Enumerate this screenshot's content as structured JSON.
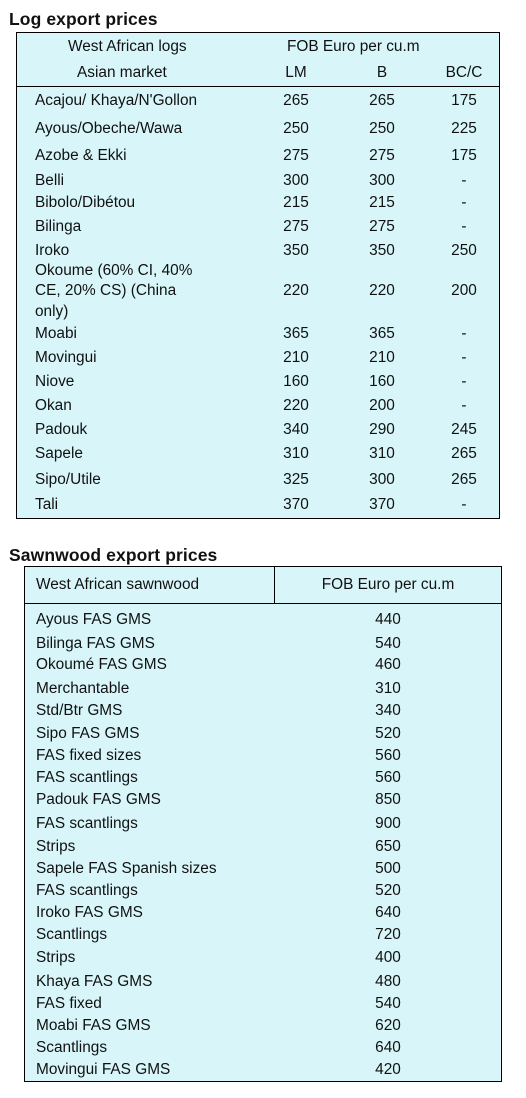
{
  "log_export": {
    "title": "Log export prices",
    "header": {
      "col1_line1": "West African logs",
      "col1_line2": "Asian market",
      "price_group": "FOB Euro per cu.m",
      "col_lm": "LM",
      "col_b": "B",
      "col_bc": "BC/C"
    },
    "rows": [
      {
        "species": "Acajou/ Khaya/N'Gollon",
        "lm": "265",
        "b": "265",
        "bc": "175"
      },
      {
        "species": "Ayous/Obeche/Wawa",
        "lm": "250",
        "b": "250",
        "bc": "225"
      },
      {
        "species": "Azobe & Ekki",
        "lm": "275",
        "b": "275",
        "bc": "175"
      },
      {
        "species": "Belli",
        "lm": "300",
        "b": "300",
        "bc": "-"
      },
      {
        "species": "Bibolo/Dibétou",
        "lm": "215",
        "b": "215",
        "bc": "-"
      },
      {
        "species": "Bilinga",
        "lm": "275",
        "b": "275",
        "bc": "-"
      },
      {
        "species": "Iroko",
        "lm": "350",
        "b": "350",
        "bc": "250"
      },
      {
        "species": "Okoume (60% CI, 40% CE, 20% CS) (China only)",
        "species_lines": [
          "Okoume (60% CI, 40%",
          "CE, 20% CS) (China",
          "only)"
        ],
        "lm": "220",
        "b": "220",
        "bc": "200"
      },
      {
        "species": "Moabi",
        "lm": "365",
        "b": "365",
        "bc": "-"
      },
      {
        "species": "Movingui",
        "lm": "210",
        "b": "210",
        "bc": "-"
      },
      {
        "species": "Niove",
        "lm": "160",
        "b": "160",
        "bc": "-"
      },
      {
        "species": "Okan",
        "lm": "220",
        "b": "200",
        "bc": "-"
      },
      {
        "species": "Padouk",
        "lm": "340",
        "b": "290",
        "bc": "245"
      },
      {
        "species": "Sapele",
        "lm": "310",
        "b": "310",
        "bc": "265"
      },
      {
        "species": "Sipo/Utile",
        "lm": "325",
        "b": "300",
        "bc": "265"
      },
      {
        "species": "Tali",
        "lm": "370",
        "b": "370",
        "bc": "-"
      }
    ]
  },
  "sawnwood_export": {
    "title": "Sawnwood export prices",
    "header": {
      "col1": "West African sawnwood",
      "col2": "FOB Euro per cu.m"
    },
    "rows": [
      {
        "item": "Ayous FAS GMS",
        "price": "440"
      },
      {
        "item": "Bilinga FAS GMS",
        "price": "540"
      },
      {
        "item": "Okoumé FAS GMS",
        "price": "460"
      },
      {
        "item": "Merchantable",
        "price": "310"
      },
      {
        "item": "Std/Btr GMS",
        "price": "340"
      },
      {
        "item": "Sipo FAS GMS",
        "price": "520"
      },
      {
        "item": "FAS fixed sizes",
        "price": "560"
      },
      {
        "item": "FAS scantlings",
        "price": "560"
      },
      {
        "item": "Padouk FAS GMS",
        "price": "850"
      },
      {
        "item": "FAS scantlings",
        "price": "900"
      },
      {
        "item": "Strips",
        "price": "650"
      },
      {
        "item": "Sapele FAS Spanish sizes",
        "price": "500"
      },
      {
        "item": "FAS scantlings",
        "price": "520"
      },
      {
        "item": "Iroko FAS GMS",
        "price": "640"
      },
      {
        "item": "Scantlings",
        "price": "720"
      },
      {
        "item": "Strips",
        "price": "400"
      },
      {
        "item": "Khaya FAS GMS",
        "price": "480"
      },
      {
        "item": "FAS fixed",
        "price": "540"
      },
      {
        "item": "Moabi FAS GMS",
        "price": "620"
      },
      {
        "item": "Scantlings",
        "price": "640"
      },
      {
        "item": "Movingui FAS GMS",
        "price": "420"
      }
    ]
  },
  "colors": {
    "table_background": "#d8f6fa",
    "border": "#000000",
    "text": "#111111"
  }
}
